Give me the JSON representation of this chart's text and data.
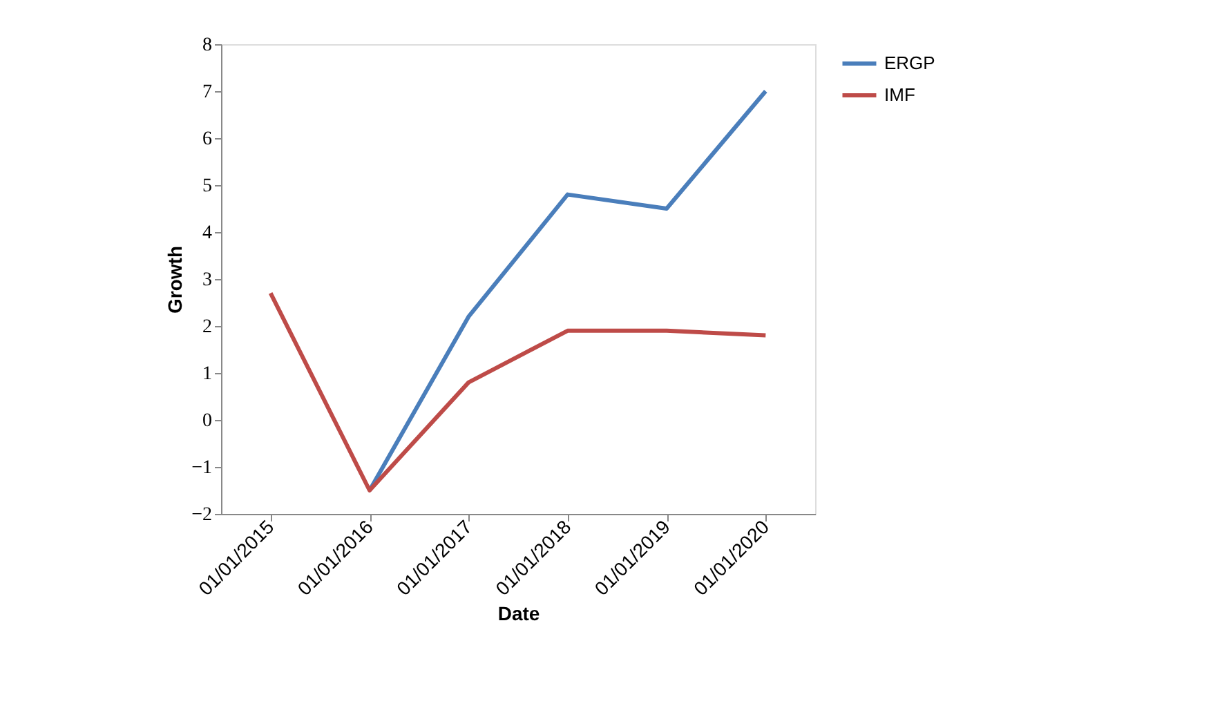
{
  "chart_data": {
    "type": "line",
    "xlabel": "Date",
    "ylabel": "Growth",
    "categories": [
      "01/01/2015",
      "01/01/2016",
      "01/01/2017",
      "01/01/2018",
      "01/01/2019",
      "01/01/2020"
    ],
    "series": [
      {
        "name": "ERGP",
        "color": "#4a7ebb",
        "values": [
          null,
          -1.5,
          2.2,
          4.8,
          4.5,
          7.0
        ]
      },
      {
        "name": "IMF",
        "color": "#be4b48",
        "values": [
          2.7,
          -1.5,
          0.8,
          1.9,
          1.9,
          1.8
        ]
      }
    ],
    "ylim": [
      -2,
      8
    ],
    "yticks": [
      -2,
      -1,
      0,
      1,
      2,
      3,
      4,
      5,
      6,
      7,
      8
    ],
    "grid": false,
    "legend": "top right",
    "marker": "none",
    "line_style": "solid"
  }
}
